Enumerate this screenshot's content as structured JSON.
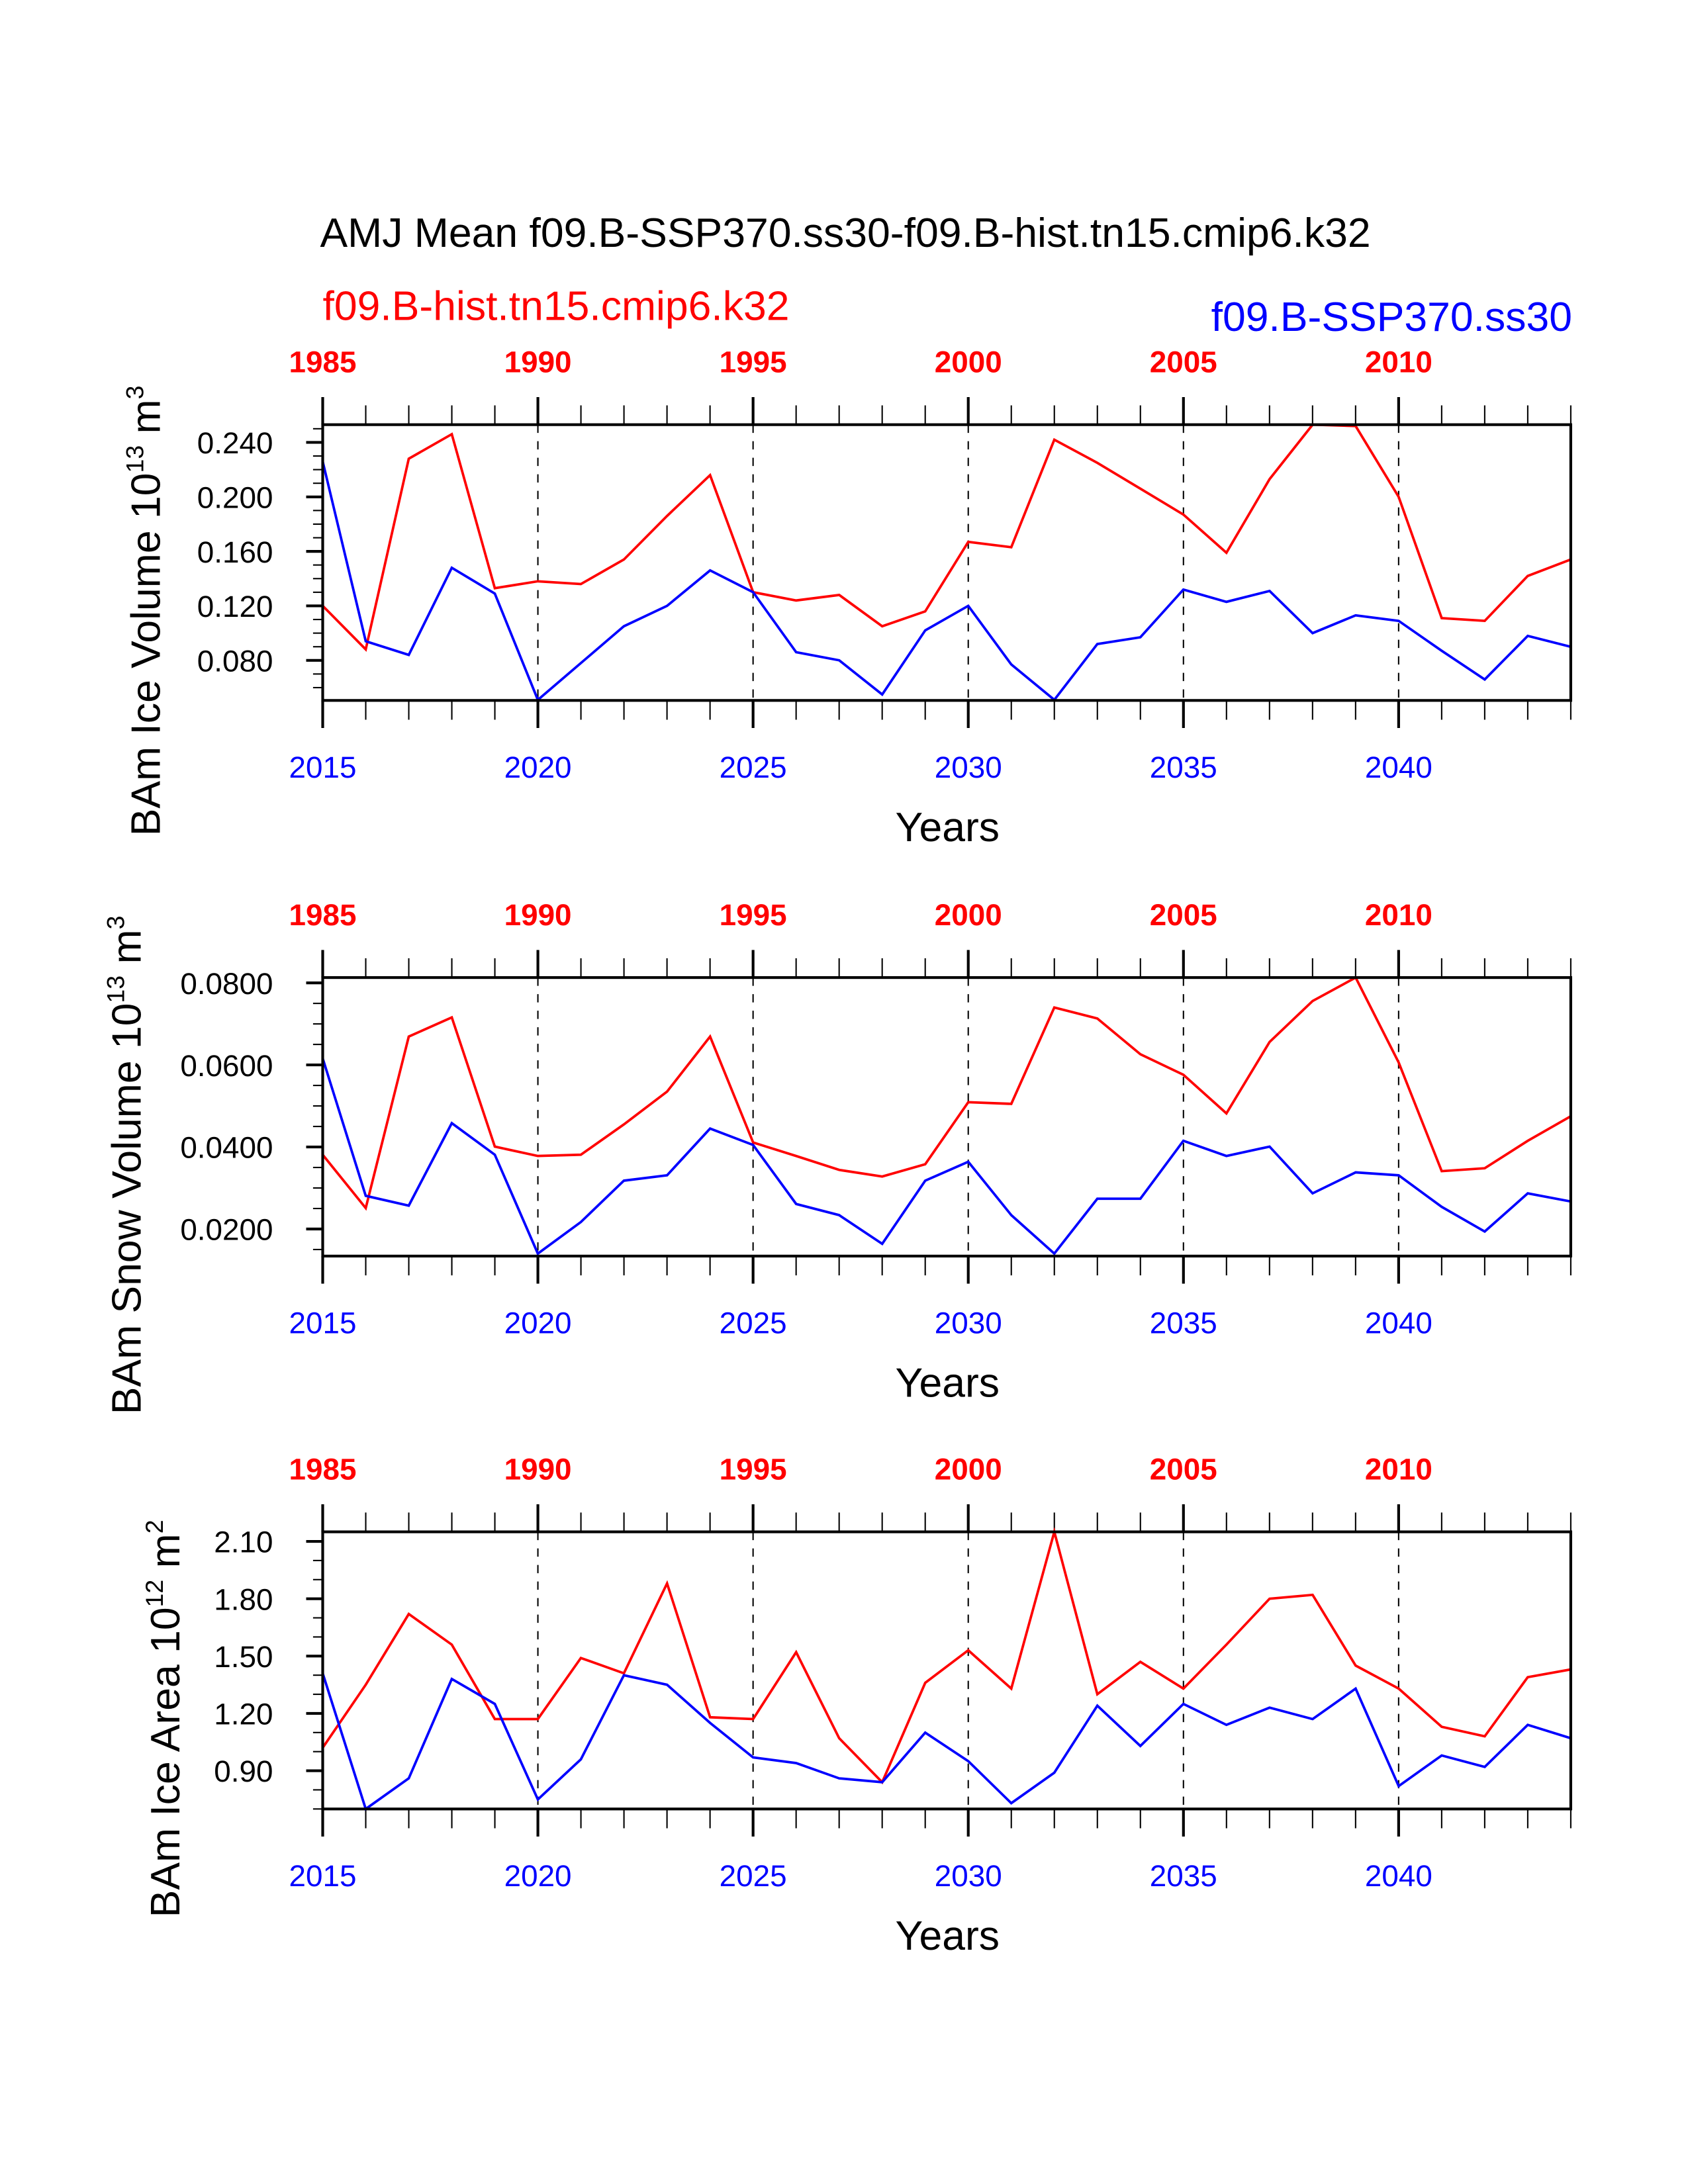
{
  "colors": {
    "hist": "#ff0000",
    "ssp": "#0000ff"
  },
  "title": "AMJ Mean f09.B-SSP370.ss30-f09.B-hist.tn15.cmip6.k32",
  "legend": {
    "hist": "f09.B-hist.tn15.cmip6.k32",
    "ssp": "f09.B-SSP370.ss30"
  },
  "chart_data": [
    {
      "type": "line",
      "ylabel": "BAm Ice Volume 10",
      "ylabel_exp": "13",
      "ylabel_unit": " m",
      "ylabel_unit_exp": "3",
      "xlabel": "Years",
      "x": [
        2015,
        2016,
        2017,
        2018,
        2019,
        2020,
        2021,
        2022,
        2023,
        2024,
        2025,
        2026,
        2027,
        2028,
        2029,
        2030,
        2031,
        2032,
        2033,
        2034,
        2035,
        2036,
        2037,
        2038,
        2039,
        2040,
        2041,
        2042,
        2043,
        2044
      ],
      "x_top_offset": -30,
      "xticks_bottom": [
        "2015",
        "2020",
        "2025",
        "2030",
        "2035",
        "2040"
      ],
      "xticks_top": [
        "1985",
        "1990",
        "1995",
        "2000",
        "2005",
        "2010"
      ],
      "yticks": [
        "0.080",
        "0.120",
        "0.160",
        "0.200",
        "0.240"
      ],
      "ylim": [
        0.0506,
        0.253
      ],
      "series": [
        {
          "name": "f09.B-hist.tn15.cmip6.k32",
          "values": [
            0.12,
            0.088,
            0.228,
            0.246,
            0.133,
            0.138,
            0.136,
            0.154,
            0.186,
            0.216,
            0.13,
            0.124,
            0.128,
            0.105,
            0.116,
            0.167,
            0.163,
            0.242,
            0.225,
            0.206,
            0.187,
            0.159,
            0.213,
            0.253,
            0.252,
            0.2,
            0.111,
            0.109,
            0.142,
            0.154
          ]
        },
        {
          "name": "f09.B-SSP370.ss30",
          "values": [
            0.226,
            0.094,
            0.084,
            0.148,
            0.129,
            0.051,
            0.078,
            0.105,
            0.12,
            0.146,
            0.13,
            0.086,
            0.08,
            0.055,
            0.102,
            0.12,
            0.077,
            0.051,
            0.092,
            0.097,
            0.132,
            0.123,
            0.131,
            0.1,
            0.113,
            0.109,
            0.087,
            0.066,
            0.098,
            0.09
          ]
        }
      ]
    },
    {
      "type": "line",
      "ylabel": "BAm Snow Volume 10",
      "ylabel_exp": "13",
      "ylabel_unit": " m",
      "ylabel_unit_exp": "3",
      "xlabel": "Years",
      "x": [
        2015,
        2016,
        2017,
        2018,
        2019,
        2020,
        2021,
        2022,
        2023,
        2024,
        2025,
        2026,
        2027,
        2028,
        2029,
        2030,
        2031,
        2032,
        2033,
        2034,
        2035,
        2036,
        2037,
        2038,
        2039,
        2040,
        2041,
        2042,
        2043,
        2044
      ],
      "x_top_offset": -30,
      "xticks_bottom": [
        "2015",
        "2020",
        "2025",
        "2030",
        "2035",
        "2040"
      ],
      "xticks_top": [
        "1985",
        "1990",
        "1995",
        "2000",
        "2005",
        "2010"
      ],
      "yticks": [
        "0.0200",
        "0.0400",
        "0.0600",
        "0.0800"
      ],
      "ylim": [
        0.0134,
        0.0813
      ],
      "series": [
        {
          "name": "f09.B-hist.tn15.cmip6.k32",
          "values": [
            0.0381,
            0.0251,
            0.0669,
            0.0716,
            0.0401,
            0.0378,
            0.0381,
            0.0455,
            0.0535,
            0.0669,
            0.0411,
            0.0378,
            0.0344,
            0.0328,
            0.0358,
            0.0509,
            0.0505,
            0.074,
            0.0713,
            0.0626,
            0.0576,
            0.0482,
            0.0656,
            0.0756,
            0.0813,
            0.0606,
            0.0341,
            0.0348,
            0.0415,
            0.0475
          ]
        },
        {
          "name": "f09.B-SSP370.ss30",
          "values": [
            0.0616,
            0.0281,
            0.0257,
            0.0458,
            0.0381,
            0.014,
            0.0217,
            0.0318,
            0.0331,
            0.0445,
            0.0405,
            0.0261,
            0.0234,
            0.0164,
            0.0318,
            0.0364,
            0.0234,
            0.014,
            0.0274,
            0.0274,
            0.0415,
            0.0378,
            0.0401,
            0.0287,
            0.0338,
            0.0331,
            0.0254,
            0.0194,
            0.0287,
            0.0267
          ]
        }
      ]
    },
    {
      "type": "line",
      "ylabel": "BAm Ice Area 10",
      "ylabel_exp": "12",
      "ylabel_unit": " m",
      "ylabel_unit_exp": "2",
      "xlabel": "Years",
      "x": [
        2015,
        2016,
        2017,
        2018,
        2019,
        2020,
        2021,
        2022,
        2023,
        2024,
        2025,
        2026,
        2027,
        2028,
        2029,
        2030,
        2031,
        2032,
        2033,
        2034,
        2035,
        2036,
        2037,
        2038,
        2039,
        2040,
        2041,
        2042,
        2043,
        2044
      ],
      "x_top_offset": -30,
      "xticks_bottom": [
        "2015",
        "2020",
        "2025",
        "2030",
        "2035",
        "2040"
      ],
      "xticks_top": [
        "1985",
        "1990",
        "1995",
        "2000",
        "2005",
        "2010"
      ],
      "yticks": [
        "0.90",
        "1.20",
        "1.50",
        "1.80",
        "2.10"
      ],
      "ylim": [
        0.7,
        2.15
      ],
      "series": [
        {
          "name": "f09.B-hist.tn15.cmip6.k32",
          "values": [
            1.02,
            1.35,
            1.72,
            1.56,
            1.17,
            1.17,
            1.49,
            1.41,
            1.88,
            1.18,
            1.17,
            1.52,
            1.07,
            0.84,
            1.36,
            1.53,
            1.33,
            2.15,
            1.3,
            1.47,
            1.33,
            1.56,
            1.8,
            1.82,
            1.45,
            1.33,
            1.13,
            1.08,
            1.39,
            1.43
          ]
        },
        {
          "name": "f09.B-SSP370.ss30",
          "values": [
            1.41,
            0.7,
            0.86,
            1.38,
            1.25,
            0.75,
            0.96,
            1.4,
            1.35,
            1.15,
            0.97,
            0.94,
            0.86,
            0.84,
            1.1,
            0.95,
            0.73,
            0.89,
            1.24,
            1.03,
            1.25,
            1.14,
            1.23,
            1.17,
            1.33,
            0.82,
            0.98,
            0.92,
            1.14,
            1.07
          ]
        }
      ]
    }
  ]
}
